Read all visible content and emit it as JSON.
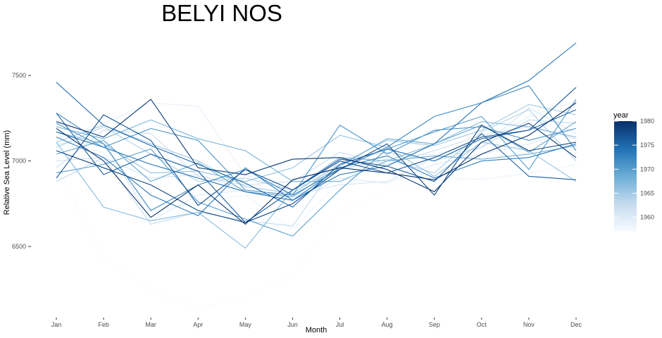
{
  "chart_data": {
    "type": "line",
    "title": "BELYI NOS",
    "xlabel": "Month",
    "ylabel": "Relative Sea Level (mm)",
    "categories": [
      "Jan",
      "Feb",
      "Mar",
      "Apr",
      "May",
      "Jun",
      "Jul",
      "Aug",
      "Sep",
      "Oct",
      "Nov",
      "Dec"
    ],
    "ylim": [
      6080,
      7760
    ],
    "yticks": [
      6500,
      7000,
      7500
    ],
    "grid": false,
    "legend": {
      "title": "year",
      "type": "colorbar",
      "position": "right",
      "range": [
        1957,
        1980
      ],
      "ticks": [
        1960,
        1965,
        1970,
        1975,
        1980
      ],
      "color_low": "#f7fbff",
      "color_high": "#08306b"
    },
    "series": [
      {
        "year": 1957,
        "values": [
          6980,
          6430,
          6240,
          6140,
          6200,
          6330,
          6700,
          6830,
          6870,
          6900,
          6920,
          6960
        ]
      },
      {
        "year": 1958,
        "values": [
          7100,
          7050,
          6700,
          6760,
          6800,
          6600,
          6880,
          6960,
          6910,
          6890,
          6930,
          6980
        ]
      },
      {
        "year": 1959,
        "values": [
          7130,
          7220,
          7340,
          7320,
          6920,
          6810,
          6990,
          7030,
          7040,
          7100,
          7260,
          7350
        ]
      },
      {
        "year": 1960,
        "values": [
          7100,
          7120,
          6650,
          6800,
          6830,
          6760,
          6900,
          6870,
          6980,
          7040,
          7100,
          7190
        ]
      },
      {
        "year": 1961,
        "values": [
          7000,
          7020,
          6900,
          6920,
          6830,
          6800,
          6860,
          6880,
          7020,
          7080,
          7310,
          7160
        ]
      },
      {
        "year": 1962,
        "values": [
          6960,
          7180,
          7160,
          6910,
          6860,
          6880,
          7050,
          6980,
          7060,
          7150,
          7200,
          7130
        ]
      },
      {
        "year": 1963,
        "values": [
          6880,
          7020,
          6630,
          6700,
          6650,
          6620,
          7010,
          7050,
          7000,
          7080,
          7240,
          7220
        ]
      },
      {
        "year": 1964,
        "values": [
          7080,
          7200,
          7040,
          6880,
          6900,
          6830,
          6950,
          7010,
          6930,
          7170,
          7300,
          7000
        ]
      },
      {
        "year": 1965,
        "values": [
          7110,
          7210,
          7100,
          7000,
          6850,
          6810,
          6980,
          7120,
          7090,
          7180,
          7330,
          7270
        ]
      },
      {
        "year": 1966,
        "values": [
          7170,
          7100,
          6930,
          6940,
          6880,
          6960,
          7150,
          7080,
          6910,
          7110,
          7060,
          6880
        ]
      },
      {
        "year": 1967,
        "values": [
          7110,
          6730,
          6650,
          6700,
          6490,
          6830,
          7020,
          7000,
          7100,
          7230,
          7200,
          7140
        ]
      },
      {
        "year": 1968,
        "values": [
          7200,
          7130,
          7240,
          7130,
          7060,
          6880,
          6880,
          7000,
          7030,
          7010,
          7040,
          7090
        ]
      },
      {
        "year": 1969,
        "values": [
          7040,
          7120,
          6880,
          6990,
          6820,
          6790,
          6970,
          7130,
          7100,
          7210,
          7050,
          7230
        ]
      },
      {
        "year": 1970,
        "values": [
          6930,
          6980,
          7070,
          6760,
          6660,
          6560,
          6830,
          7070,
          7170,
          7260,
          6950,
          7360
        ]
      },
      {
        "year": 1971,
        "values": [
          7220,
          7080,
          7190,
          7120,
          6830,
          6800,
          7210,
          7040,
          7180,
          7200,
          7120,
          7190
        ]
      },
      {
        "year": 1972,
        "values": [
          7280,
          7100,
          6710,
          6860,
          6950,
          6800,
          6950,
          7080,
          7260,
          7340,
          7440,
          7060
        ]
      },
      {
        "year": 1973,
        "values": [
          7140,
          7020,
          6800,
          6680,
          6960,
          6770,
          6960,
          7030,
          6900,
          7000,
          7020,
          7100
        ]
      },
      {
        "year": 1974,
        "values": [
          7170,
          7080,
          6980,
          6900,
          6820,
          6770,
          6920,
          6970,
          7100,
          7340,
          7470,
          7690
        ]
      },
      {
        "year": 1975,
        "values": [
          7460,
          7210,
          7090,
          6980,
          6870,
          6730,
          6980,
          7070,
          7000,
          7130,
          7180,
          7300
        ]
      },
      {
        "year": 1976,
        "values": [
          7280,
          6920,
          7040,
          6940,
          6640,
          6830,
          7010,
          6970,
          6880,
          7160,
          6910,
          6890
        ]
      },
      {
        "year": 1977,
        "values": [
          6900,
          7270,
          7120,
          6740,
          6950,
          6830,
          7000,
          6930,
          7020,
          7140,
          7180,
          7430
        ]
      },
      {
        "year": 1978,
        "values": [
          7060,
          6960,
          6860,
          6710,
          6640,
          6750,
          6950,
          7100,
          6800,
          7210,
          7060,
          7110
        ]
      },
      {
        "year": 1979,
        "values": [
          7230,
          7140,
          7360,
          6960,
          6920,
          7010,
          7020,
          6950,
          6820,
          7110,
          7220,
          7020
        ]
      },
      {
        "year": 1980,
        "values": [
          7190,
          7000,
          6670,
          6860,
          6630,
          6890,
          6960,
          6930,
          6890,
          7040,
          7150,
          7340
        ]
      }
    ]
  }
}
